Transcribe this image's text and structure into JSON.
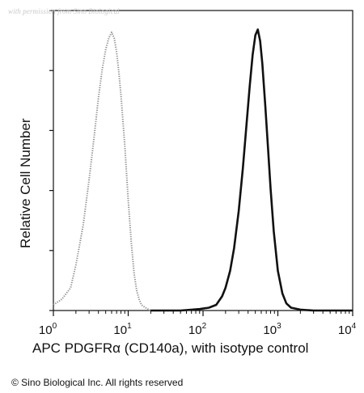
{
  "watermark": "with permission from Sino Biological",
  "footer": "© Sino Biological Inc. All rights reserved",
  "chart_data": {
    "type": "line",
    "title": "",
    "xlabel": "APC PDGFRα (CD140a), with isotype control",
    "ylabel": "Relative Cell Number",
    "xscale": "log",
    "xlim": [
      1,
      10000
    ],
    "ylim": [
      0,
      1
    ],
    "x_ticks": [
      {
        "base": "10",
        "exp": "0"
      },
      {
        "base": "10",
        "exp": "1"
      },
      {
        "base": "10",
        "exp": "2"
      },
      {
        "base": "10",
        "exp": "3"
      },
      {
        "base": "10",
        "exp": "4"
      }
    ],
    "grid": false,
    "legend": "none",
    "series": [
      {
        "style": "dotted-gray",
        "color": "#8a8a8a",
        "x": [
          1.0,
          1.3,
          1.7,
          2.0,
          2.5,
          3.0,
          3.5,
          4.0,
          4.5,
          5.0,
          5.5,
          6.0,
          6.5,
          7.0,
          7.5,
          8.0,
          9.0,
          10.0,
          11.0,
          12.0,
          13.0,
          14.0,
          15.0,
          17.0,
          20.0
        ],
        "y": [
          0.02,
          0.04,
          0.08,
          0.16,
          0.3,
          0.46,
          0.61,
          0.75,
          0.85,
          0.92,
          0.96,
          0.98,
          0.96,
          0.91,
          0.84,
          0.76,
          0.58,
          0.39,
          0.24,
          0.13,
          0.07,
          0.04,
          0.02,
          0.01,
          0.0
        ]
      },
      {
        "style": "solid-black",
        "color": "#111111",
        "x": [
          20,
          50,
          90,
          120,
          150,
          180,
          200,
          230,
          260,
          300,
          340,
          380,
          420,
          460,
          500,
          540,
          580,
          620,
          680,
          740,
          800,
          880,
          1000,
          1150,
          1300,
          1500,
          2000,
          3000,
          6000,
          10000
        ],
        "y": [
          0.0,
          0.0,
          0.005,
          0.01,
          0.02,
          0.05,
          0.08,
          0.14,
          0.22,
          0.35,
          0.5,
          0.65,
          0.79,
          0.9,
          0.97,
          0.99,
          0.95,
          0.87,
          0.72,
          0.57,
          0.43,
          0.28,
          0.14,
          0.06,
          0.025,
          0.01,
          0.003,
          0.0,
          0.0,
          0.0
        ]
      }
    ]
  }
}
